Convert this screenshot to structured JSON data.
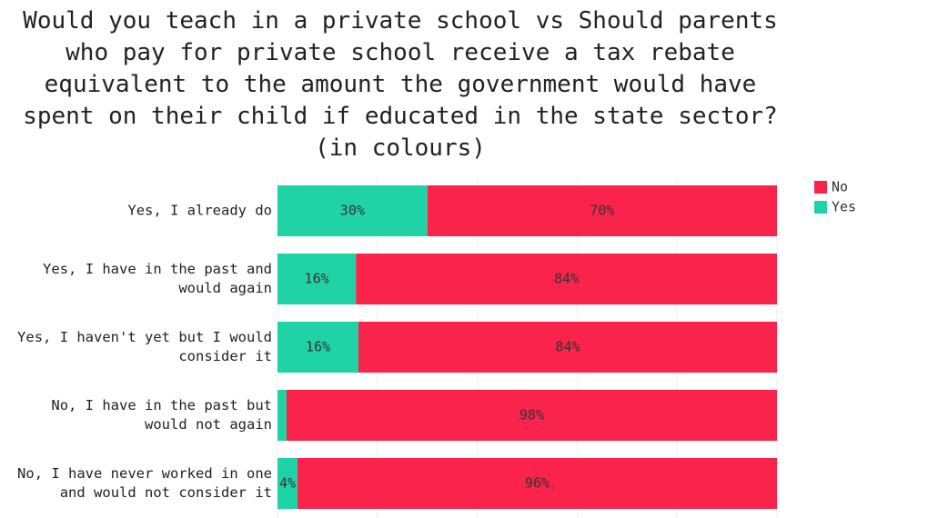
{
  "chart_data": {
    "type": "stacked_bar_horizontal",
    "title": "Would you teach in a private school vs Should parents\nwho pay for private school receive a tax rebate\nequivalent to the amount the government would have\nspent on their child if educated in the state sector?\n(in colours)",
    "categories": [
      "Yes, I already do",
      "Yes, I have in the past and\nwould again",
      "Yes, I haven't yet but I would\nconsider it",
      "No, I have in the past but\nwould not again",
      "No, I have never worked in one\nand would not consider it"
    ],
    "series": [
      {
        "name": "Yes",
        "color": "#1fd3a6",
        "values": [
          30,
          15.7,
          16.2,
          1.8,
          4
        ],
        "value_labels": [
          "30%",
          "16%",
          "16%",
          null,
          "4%"
        ]
      },
      {
        "name": "No",
        "color": "#f9234b",
        "values": [
          70,
          84.3,
          83.8,
          98.2,
          96
        ],
        "value_labels": [
          "70%",
          "84%",
          "84%",
          "98%",
          "96%"
        ]
      }
    ],
    "xlim": [
      0,
      100
    ],
    "xticks": [
      0,
      20,
      40,
      60,
      80,
      100
    ],
    "grid": true,
    "legend": "top-right"
  }
}
